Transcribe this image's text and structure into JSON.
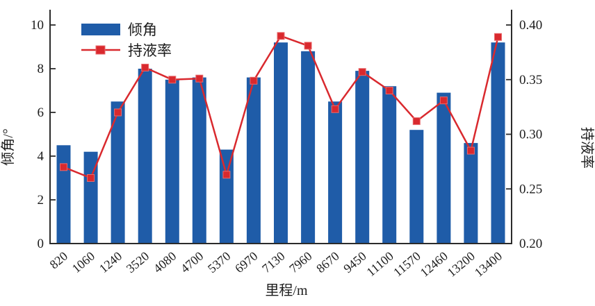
{
  "chart_data": {
    "type": "combo",
    "categories": [
      "820",
      "1060",
      "1240",
      "3520",
      "4080",
      "4700",
      "5370",
      "6970",
      "7130",
      "7960",
      "8670",
      "9450",
      "11100",
      "11570",
      "12460",
      "13200",
      "13400"
    ],
    "series": [
      {
        "name": "倾角",
        "type": "bar",
        "axis": "left",
        "color": "#1f5ca8",
        "values": [
          4.5,
          4.2,
          6.5,
          8.0,
          7.5,
          7.6,
          4.3,
          7.6,
          9.2,
          8.8,
          6.5,
          7.9,
          7.2,
          5.2,
          6.9,
          4.6,
          9.2
        ]
      },
      {
        "name": "持液率",
        "type": "line",
        "axis": "right",
        "color": "#d9292e",
        "marker": "square",
        "values": [
          0.27,
          0.26,
          0.32,
          0.361,
          0.35,
          0.351,
          0.263,
          0.349,
          0.39,
          0.381,
          0.323,
          0.357,
          0.34,
          0.312,
          0.331,
          0.285,
          0.389
        ]
      }
    ],
    "xlabel": "里程/m",
    "ylabel_left": "倾角/°",
    "ylabel_right": "持液率",
    "yleft_ticks": [
      0,
      2,
      4,
      6,
      8,
      10
    ],
    "yleft_range": [
      0,
      10.7
    ],
    "yright_ticks": [
      "0.20",
      "0.25",
      "0.30",
      "0.35",
      "0.40"
    ],
    "yright_range": [
      0.2,
      0.4
    ],
    "grid": false,
    "legend_position": "top-left-inside"
  },
  "colors": {
    "bar": "#1f5ca8",
    "line": "#d9292e",
    "axis": "#2b2b2b",
    "text": "#1c1c1c",
    "background": "#ffffff"
  }
}
